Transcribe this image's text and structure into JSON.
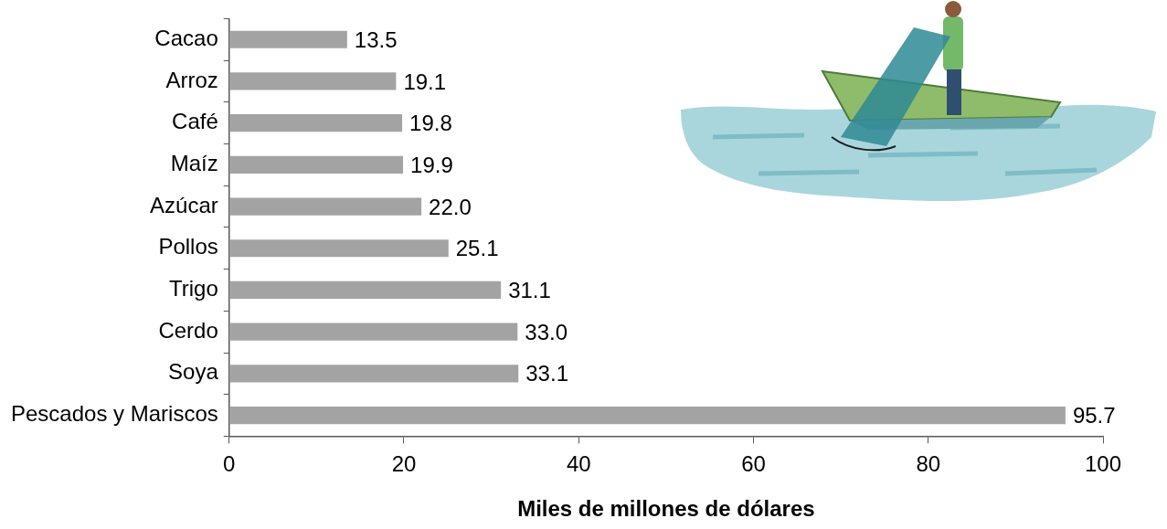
{
  "chart_data": {
    "type": "bar",
    "orientation": "horizontal",
    "categories": [
      "Cacao",
      "Arroz",
      "Café",
      "Maíz",
      "Azúcar",
      "Pollos",
      "Trigo",
      "Cerdo",
      "Soya",
      "Pescados y Mariscos"
    ],
    "values": [
      13.5,
      19.1,
      19.8,
      19.9,
      22.0,
      25.1,
      31.1,
      33.0,
      33.1,
      95.7
    ],
    "value_labels": [
      "13.5",
      "19.1",
      "19.8",
      "19.9",
      "22.0",
      "25.1",
      "31.1",
      "33.0",
      "33.1",
      "95.7"
    ],
    "data_labels": true,
    "color": "#a3a3a3",
    "xlabel": "Miles de millones de dólares",
    "xlim": [
      0,
      100
    ],
    "xticks": [
      0,
      20,
      40,
      60,
      80,
      100
    ],
    "grid": false
  }
}
